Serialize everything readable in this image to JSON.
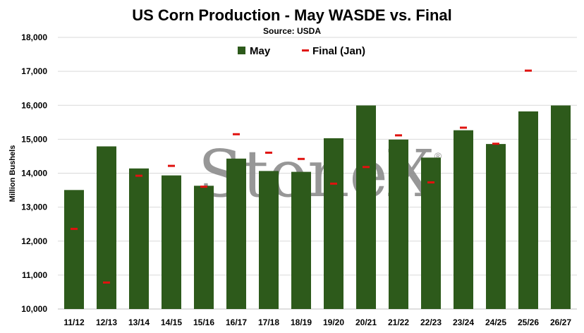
{
  "chart_data": {
    "type": "bar",
    "title": "US Corn Production - May WASDE vs. Final",
    "subtitle": "Source: USDA",
    "ylabel": "Million Bushels",
    "xlabel": "",
    "ylim": [
      10000,
      18000
    ],
    "ytick_step": 1000,
    "grid": true,
    "legend_position": "top-center",
    "categories": [
      "11/12",
      "12/13",
      "13/14",
      "14/15",
      "15/16",
      "16/17",
      "17/18",
      "18/19",
      "19/20",
      "20/21",
      "21/22",
      "22/23",
      "23/24",
      "24/25",
      "25/26",
      "26/27"
    ],
    "series": [
      {
        "name": "May",
        "type": "bar",
        "color": "#2d5a1b",
        "values": [
          13505,
          14790,
          14140,
          13935,
          13630,
          14430,
          14065,
          14040,
          15030,
          15995,
          14990,
          14460,
          15265,
          14860,
          15820,
          15995
        ]
      },
      {
        "name": "Final (Jan)",
        "type": "marker",
        "color": "#e0120f",
        "values": [
          12360,
          10780,
          13925,
          14216,
          13602,
          15148,
          14604,
          14420,
          13692,
          14182,
          15115,
          13730,
          15341,
          14867,
          17021,
          null
        ]
      }
    ],
    "watermark": "StoneX",
    "watermark_mark": "®"
  }
}
